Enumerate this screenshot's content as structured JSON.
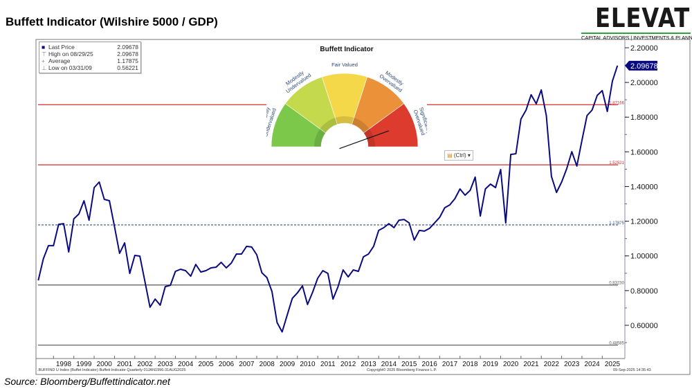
{
  "title": "Buffett Indicator (Wilshire 5000 / GDP)",
  "logo": {
    "word": "ELEVATE",
    "sub": "CAPITAL ADVISORS | INVESTMENTS & PLANNING",
    "accent": "#2aa43a"
  },
  "source": "Source: Bloomberg/Buffettindicator.net",
  "legend": [
    {
      "symbol": "■",
      "label": "Last Price",
      "value": "2.09678"
    },
    {
      "symbol": "⊤",
      "label": "High on 08/29/25",
      "value": "2.09678"
    },
    {
      "symbol": "+",
      "label": "Average",
      "value": "1.17875"
    },
    {
      "symbol": "⊥",
      "label": "Low on 03/31/09",
      "value": "0.56221"
    }
  ],
  "gauge": {
    "title": "Buffett Indicator",
    "segments": [
      {
        "label1": "Significantly",
        "label2": "Undervalued",
        "color": "#7cc84a"
      },
      {
        "label1": "Modestly",
        "label2": "Undervalued",
        "color": "#c4d94c"
      },
      {
        "label1": "Fair Valued",
        "label2": "",
        "color": "#f5d84a"
      },
      {
        "label1": "Modestly",
        "label2": "Overvalued",
        "color": "#ea9139"
      },
      {
        "label1": "Significantly",
        "label2": "Overvalued",
        "color": "#dd3b2e"
      }
    ],
    "needle_fraction": 0.89
  },
  "ctrl_label": "(Ctrl) ▾",
  "footer": {
    "left": ".BUFFIND U Index (Buffet Indicator) Buffett Indicator  Quarterly 01JAN1996-31AUG2025",
    "center": "Copyright© 2025 Bloomberg Finance L.P.",
    "right": "09-Sep-2025 14:35:43"
  },
  "chart_data": {
    "type": "line",
    "title": "Buffett Indicator (Wilshire 5000 / GDP)",
    "xlabel": "",
    "ylabel": "",
    "x_start": 1997.25,
    "x_step": 0.25,
    "xlim": [
      1997.25,
      2026.0
    ],
    "ylim": [
      0.45,
      2.25
    ],
    "x_ticks": [
      "1998",
      "1999",
      "2000",
      "2001",
      "2002",
      "2003",
      "2004",
      "2005",
      "2006",
      "2007",
      "2008",
      "2009",
      "2010",
      "2011",
      "2012",
      "2013",
      "2014",
      "2015",
      "2016",
      "2017",
      "2018",
      "2019",
      "2020",
      "2021",
      "2022",
      "2023",
      "2024",
      "2025"
    ],
    "y_ticks": [
      "2.20000",
      "2.00000",
      "1.80000",
      "1.60000",
      "1.40000",
      "1.20000",
      "1.00000",
      "0.80000",
      "0.60000"
    ],
    "y_tick_values": [
      2.2,
      2.0,
      1.8,
      1.6,
      1.4,
      1.2,
      1.0,
      0.8,
      0.6
    ],
    "grid": false,
    "series": [
      {
        "name": "Buffett Indicator",
        "color": "#0a0a80",
        "values": [
          0.859,
          0.983,
          1.059,
          1.059,
          1.182,
          1.186,
          1.023,
          1.214,
          1.242,
          1.318,
          1.206,
          1.394,
          1.426,
          1.326,
          1.318,
          1.17,
          1.015,
          1.075,
          0.899,
          1.003,
          0.999,
          0.851,
          0.704,
          0.751,
          0.716,
          0.823,
          0.831,
          0.911,
          0.923,
          0.915,
          0.883,
          0.951,
          0.907,
          0.915,
          0.931,
          0.935,
          0.963,
          0.931,
          0.959,
          1.011,
          1.011,
          1.055,
          1.051,
          1.007,
          0.903,
          0.875,
          0.795,
          0.616,
          0.562,
          0.66,
          0.755,
          0.787,
          0.827,
          0.72,
          0.791,
          0.871,
          0.915,
          0.899,
          0.751,
          0.823,
          0.919,
          0.879,
          0.919,
          0.911,
          0.995,
          1.011,
          1.055,
          1.147,
          1.163,
          1.186,
          1.163,
          1.206,
          1.21,
          1.19,
          1.091,
          1.147,
          1.143,
          1.159,
          1.19,
          1.222,
          1.278,
          1.294,
          1.33,
          1.386,
          1.35,
          1.378,
          1.454,
          1.23,
          1.386,
          1.414,
          1.394,
          1.498,
          1.19,
          1.585,
          1.589,
          1.789,
          1.841,
          1.929,
          1.877,
          1.957,
          1.809,
          1.458,
          1.366,
          1.426,
          1.502,
          1.601,
          1.518,
          1.665,
          1.809,
          1.841,
          1.925,
          1.953,
          1.833,
          2.008,
          2.097
        ]
      }
    ],
    "reference_lines": [
      {
        "value": 1.87166,
        "label": "1.87166",
        "color": "#d42a2a",
        "style": "solid"
      },
      {
        "value": 1.52521,
        "label": "1.52521",
        "color": "#d42a2a",
        "style": "solid"
      },
      {
        "value": 1.17875,
        "label": "1.17875",
        "color": "#2f4f80",
        "style": "dashed"
      },
      {
        "value": 0.8323,
        "label": "0.83230",
        "color": "#555555",
        "style": "solid"
      },
      {
        "value": 0.48585,
        "label": "0.48585",
        "color": "#555555",
        "style": "solid"
      }
    ],
    "last_price": {
      "value": 2.09678,
      "label": "2.09678",
      "color": "#0a0a80"
    }
  }
}
